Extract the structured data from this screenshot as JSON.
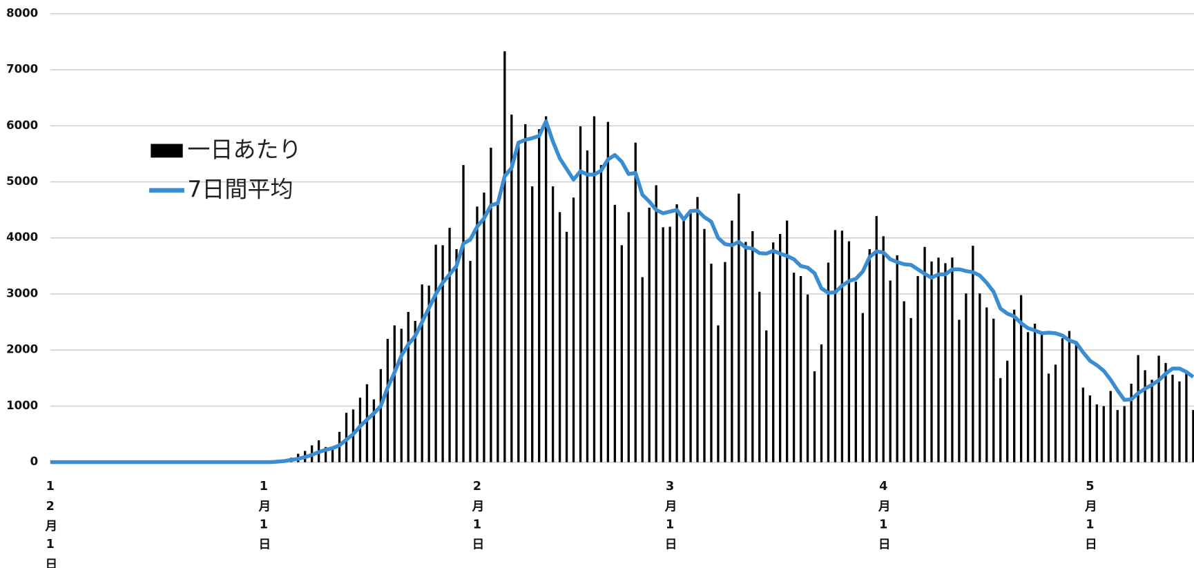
{
  "chart_data": {
    "type": "bar",
    "categories": [
      "12月1日",
      null,
      null,
      null,
      null,
      null,
      null,
      null,
      null,
      null,
      null,
      null,
      null,
      null,
      null,
      null,
      null,
      null,
      null,
      null,
      null,
      null,
      null,
      null,
      null,
      null,
      null,
      null,
      null,
      null,
      null,
      "1月1日",
      null,
      null,
      null,
      null,
      null,
      null,
      null,
      null,
      null,
      null,
      null,
      null,
      null,
      null,
      null,
      null,
      null,
      null,
      null,
      null,
      null,
      null,
      null,
      null,
      null,
      null,
      null,
      null,
      null,
      null,
      "2月1日",
      null,
      null,
      null,
      null,
      null,
      null,
      null,
      null,
      null,
      null,
      null,
      null,
      null,
      null,
      null,
      null,
      null,
      null,
      null,
      null,
      null,
      null,
      null,
      null,
      null,
      null,
      null,
      "3月1日",
      null,
      null,
      null,
      null,
      null,
      null,
      null,
      null,
      null,
      null,
      null,
      null,
      null,
      null,
      null,
      null,
      null,
      null,
      null,
      null,
      null,
      null,
      null,
      null,
      null,
      null,
      null,
      null,
      null,
      null,
      "4月1日",
      null,
      null,
      null,
      null,
      null,
      null,
      null,
      null,
      null,
      null,
      null,
      null,
      null,
      null,
      null,
      null,
      null,
      null,
      null,
      null,
      null,
      null,
      null,
      null,
      null,
      null,
      null,
      null,
      null,
      "5月1日",
      null,
      null,
      null,
      null,
      null,
      null,
      null,
      null,
      null,
      null,
      null,
      null,
      null,
      null,
      null
    ],
    "series": [
      {
        "name": "一日あたり",
        "type": "bar",
        "color": "#000000",
        "values": [
          0,
          0,
          0,
          0,
          0,
          0,
          0,
          0,
          0,
          0,
          0,
          0,
          0,
          0,
          0,
          0,
          0,
          0,
          0,
          0,
          0,
          0,
          0,
          0,
          0,
          0,
          0,
          0,
          0,
          0,
          0,
          0,
          5,
          10,
          30,
          80,
          150,
          200,
          300,
          390,
          270,
          250,
          540,
          880,
          940,
          1150,
          1390,
          1120,
          1660,
          2200,
          2440,
          2380,
          2680,
          2520,
          3170,
          3150,
          3880,
          3870,
          4180,
          3800,
          5300,
          3590,
          4560,
          4810,
          5610,
          4600,
          7330,
          6200,
          5720,
          6030,
          4920,
          5940,
          6170,
          4920,
          4460,
          4110,
          4720,
          5990,
          5560,
          6170,
          5300,
          6070,
          4590,
          3870,
          4460,
          5700,
          3300,
          4540,
          4940,
          4190,
          4200,
          4600,
          4380,
          4440,
          4730,
          4160,
          3540,
          2440,
          3570,
          4310,
          4790,
          3930,
          4120,
          3040,
          2350,
          3920,
          4070,
          4310,
          3380,
          3320,
          2990,
          1620,
          2100,
          3560,
          4140,
          4130,
          3940,
          3220,
          2660,
          3800,
          4390,
          4030,
          3240,
          3690,
          2870,
          2570,
          3320,
          3840,
          3580,
          3650,
          3550,
          3650,
          2540,
          3010,
          3860,
          3010,
          2760,
          2560,
          1500,
          1810,
          2720,
          2980,
          2320,
          2470,
          2270,
          1580,
          1740,
          2210,
          2340,
          2100,
          1330,
          1190,
          1030,
          1000,
          1270,
          930,
          1000,
          1400,
          1910,
          1640,
          1470,
          1900,
          1770,
          1560,
          1440,
          1580,
          930
        ]
      },
      {
        "name": "7日間平均",
        "type": "line",
        "color": "#3a8dd1",
        "values": [
          0,
          0,
          0,
          0,
          0,
          0,
          0,
          0,
          0,
          0,
          0,
          0,
          0,
          0,
          0,
          0,
          0,
          0,
          0,
          0,
          0,
          0,
          0,
          0,
          0,
          0,
          0,
          0,
          0,
          0,
          0,
          0,
          0,
          10,
          20,
          40,
          60,
          90,
          130,
          180,
          220,
          250,
          300,
          400,
          500,
          640,
          760,
          870,
          1000,
          1330,
          1600,
          1900,
          2100,
          2250,
          2500,
          2750,
          3000,
          3200,
          3350,
          3500,
          3900,
          3970,
          4200,
          4350,
          4580,
          4620,
          5100,
          5250,
          5700,
          5750,
          5780,
          5820,
          6080,
          5720,
          5420,
          5230,
          5040,
          5190,
          5130,
          5130,
          5200,
          5400,
          5480,
          5360,
          5140,
          5160,
          4770,
          4650,
          4500,
          4440,
          4470,
          4500,
          4330,
          4480,
          4490,
          4370,
          4290,
          4000,
          3890,
          3870,
          3930,
          3830,
          3810,
          3730,
          3720,
          3770,
          3720,
          3680,
          3620,
          3500,
          3470,
          3370,
          3100,
          3020,
          3030,
          3150,
          3230,
          3270,
          3400,
          3660,
          3760,
          3740,
          3620,
          3570,
          3530,
          3520,
          3440,
          3360,
          3290,
          3350,
          3350,
          3440,
          3440,
          3410,
          3390,
          3330,
          3200,
          3040,
          2740,
          2650,
          2600,
          2480,
          2390,
          2350,
          2300,
          2310,
          2300,
          2260,
          2170,
          2130,
          1960,
          1810,
          1730,
          1630,
          1470,
          1280,
          1110,
          1120,
          1230,
          1310,
          1380,
          1460,
          1580,
          1670,
          1670,
          1610,
          1520
        ]
      }
    ],
    "ylim": [
      0,
      8000
    ],
    "yticks": [
      0,
      1000,
      2000,
      3000,
      4000,
      5000,
      6000,
      7000,
      8000
    ],
    "grid": true,
    "legend": "upper left"
  }
}
